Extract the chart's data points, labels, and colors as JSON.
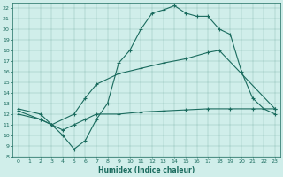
{
  "xlabel": "Humidex (Indice chaleur)",
  "ylabel": "",
  "xlim": [
    -0.5,
    23.5
  ],
  "ylim": [
    8,
    22.5
  ],
  "xticks": [
    0,
    1,
    2,
    3,
    4,
    5,
    6,
    7,
    8,
    9,
    10,
    11,
    12,
    13,
    14,
    15,
    16,
    17,
    18,
    19,
    20,
    21,
    22,
    23
  ],
  "yticks": [
    8,
    9,
    10,
    11,
    12,
    13,
    14,
    15,
    16,
    17,
    18,
    19,
    20,
    21,
    22
  ],
  "bg_color": "#d0eeea",
  "line_color": "#1a6b5e",
  "curve1_x": [
    0,
    2,
    3,
    4,
    5,
    6,
    7,
    8,
    9,
    10,
    11,
    12,
    13,
    14,
    15,
    16,
    17,
    18,
    19,
    20,
    21,
    22,
    23
  ],
  "curve1_y": [
    12.5,
    12.0,
    11.0,
    10.0,
    8.7,
    9.5,
    11.5,
    13.0,
    16.8,
    18.0,
    20.0,
    21.5,
    21.8,
    22.2,
    21.5,
    21.2,
    21.2,
    20.0,
    19.5,
    16.0,
    13.5,
    12.5,
    12.0
  ],
  "curve2_x": [
    0,
    2,
    3,
    5,
    6,
    7,
    9,
    11,
    13,
    15,
    17,
    18,
    23
  ],
  "curve2_y": [
    12.3,
    11.5,
    11.0,
    12.0,
    13.5,
    14.8,
    15.8,
    16.3,
    16.8,
    17.2,
    17.8,
    18.0,
    12.5
  ],
  "curve3_x": [
    0,
    2,
    3,
    4,
    5,
    6,
    7,
    9,
    11,
    13,
    15,
    17,
    19,
    21,
    23
  ],
  "curve3_y": [
    12.0,
    11.5,
    11.0,
    10.5,
    11.0,
    11.5,
    12.0,
    12.0,
    12.2,
    12.3,
    12.4,
    12.5,
    12.5,
    12.5,
    12.5
  ]
}
